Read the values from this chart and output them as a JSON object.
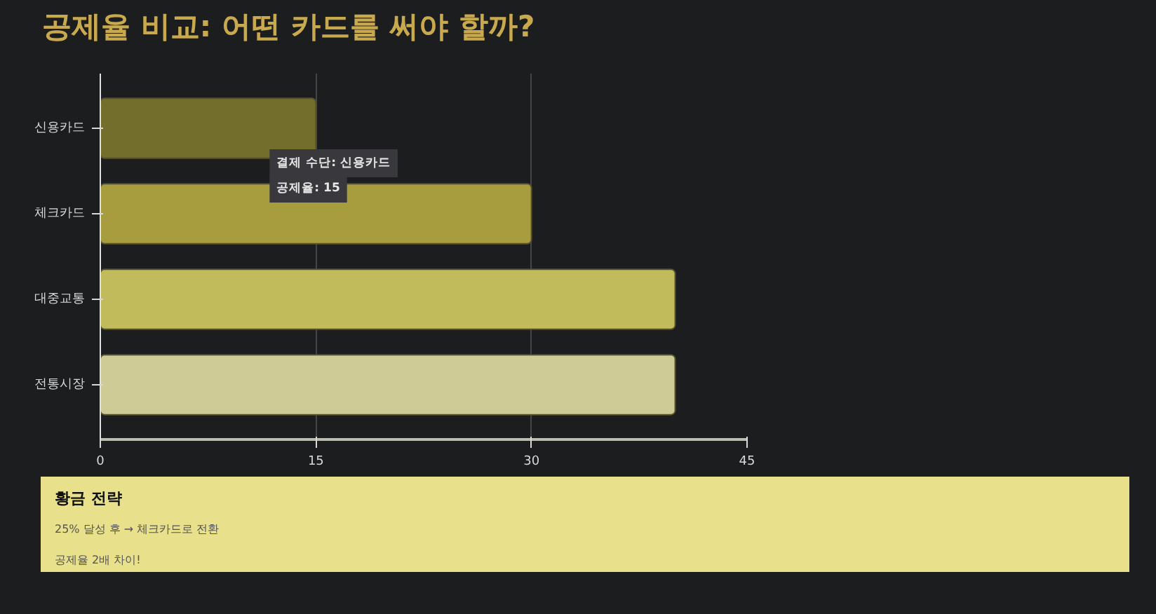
{
  "chart_data": {
    "type": "bar",
    "orientation": "horizontal",
    "title": "공제율 비교: 어떤 카드를 써야 할까?",
    "categories": [
      "신용카드",
      "체크카드",
      "대중교통",
      "전통시장"
    ],
    "values": [
      15,
      30,
      40,
      40
    ],
    "colors": [
      "#736e2c",
      "#a89d3e",
      "#c2bb5c",
      "#cfcb96"
    ],
    "xlim": [
      0,
      45
    ],
    "xticks": [
      0,
      15,
      30,
      45
    ],
    "grid": "x",
    "annotations": [
      {
        "text": "결제 수단: 신용카드",
        "x": 15,
        "y": "신용카드"
      },
      {
        "text": "공제율: 15",
        "x": 15,
        "y": "신용카드"
      },
      "황금 전략",
      "25% 달성 후 → 체크카드로 전환",
      "공제율 2배 차이!"
    ]
  }
}
